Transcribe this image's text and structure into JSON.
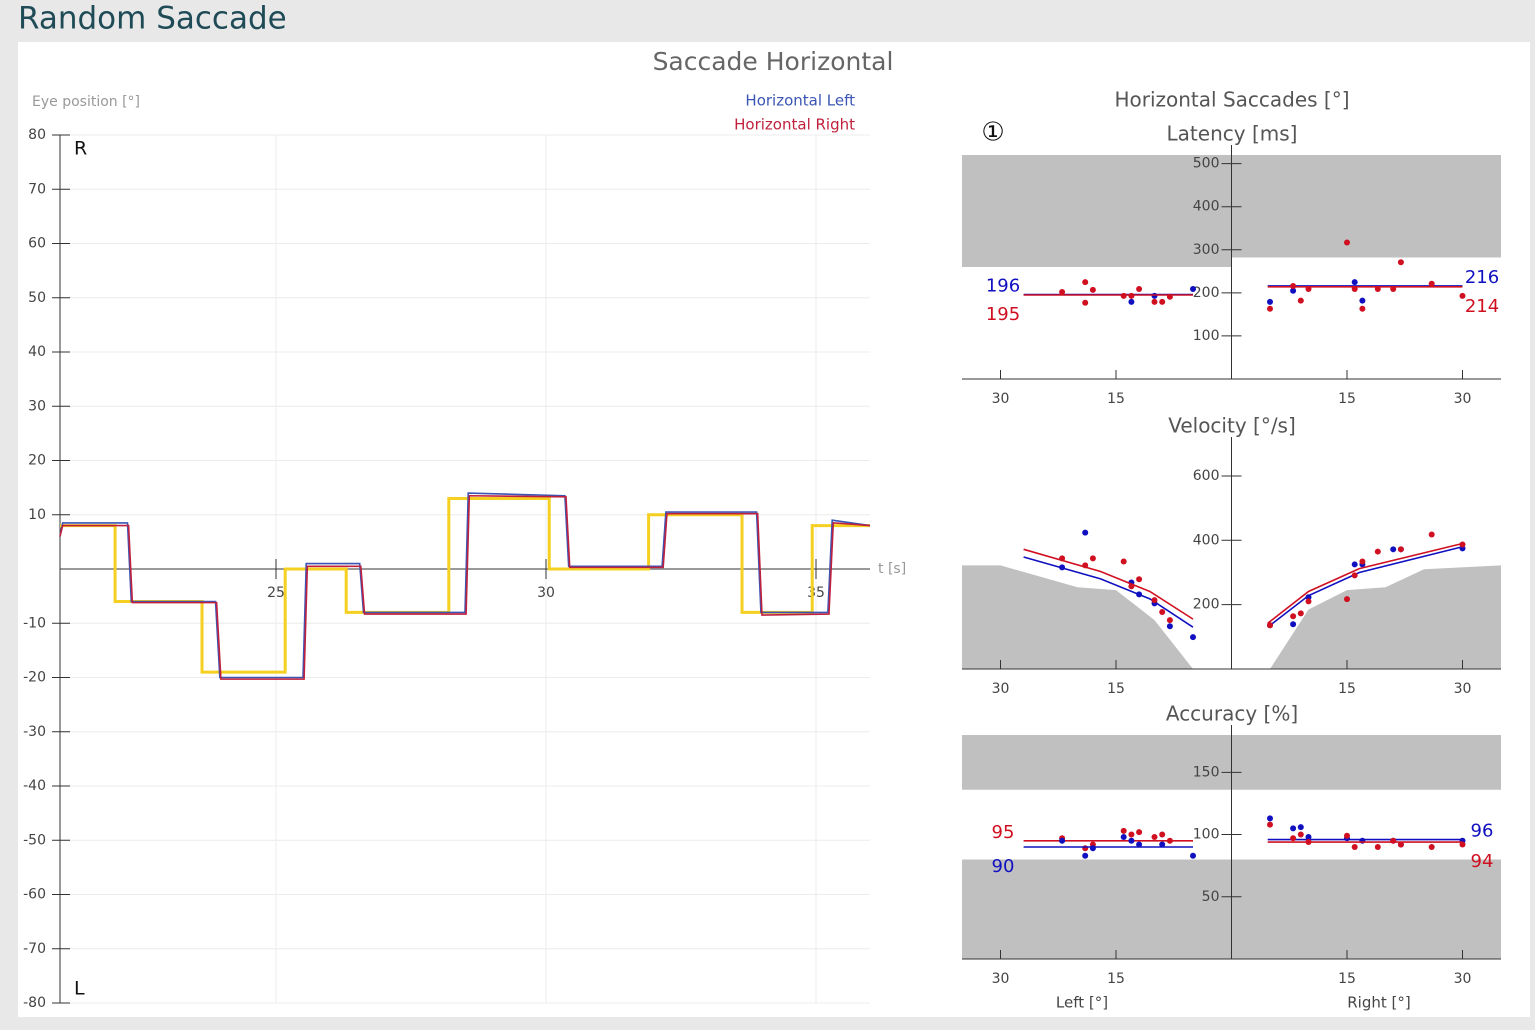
{
  "header": {
    "title": "Random Saccade"
  },
  "section": {
    "title": "Saccade Horizontal"
  },
  "summary": {
    "title": "Horizontal Saccades [°]",
    "marker": "①",
    "xlabels": [
      "Left [°]",
      "Right [°]"
    ]
  },
  "chart_data": [
    {
      "type": "line",
      "ylabel": "Eye position [°]",
      "xlabel": "t [s]",
      "top_label": "R",
      "bottom_label": "L",
      "xlim": [
        21,
        36
      ],
      "xticks": [
        25,
        30,
        35
      ],
      "ylim": [
        -80,
        80
      ],
      "yticks": [
        -80,
        -70,
        -60,
        -50,
        -40,
        -30,
        -20,
        -10,
        10,
        20,
        30,
        40,
        50,
        60,
        70,
        80
      ],
      "grid": true,
      "legend": "top-right",
      "series": [
        {
          "color": "#f5d020",
          "x": [
            21,
            22.02,
            22.02,
            23.63,
            23.63,
            25.17,
            25.17,
            26.3,
            26.3,
            28.2,
            28.2,
            30.06,
            30.06,
            31.9,
            31.9,
            33.63,
            33.63,
            34.93,
            34.93,
            36
          ],
          "values": [
            8,
            8,
            -6,
            -6,
            -19,
            -19,
            0,
            0,
            -8,
            -8,
            13,
            13,
            0,
            0,
            10,
            10,
            -8,
            -8,
            8,
            8
          ]
        },
        {
          "name": "Horizontal Left",
          "color": "#3a55b4",
          "x": [
            21,
            21.05,
            22.25,
            22.32,
            23.88,
            23.96,
            25.5,
            25.56,
            26.55,
            26.62,
            28.5,
            28.56,
            30.35,
            30.42,
            32.15,
            32.22,
            33.9,
            33.98,
            35.22,
            35.3,
            36
          ],
          "values": [
            6,
            8.5,
            8.5,
            -6,
            -6,
            -20,
            -20,
            1,
            1,
            -8,
            -8,
            14,
            13.5,
            0.5,
            0.5,
            10.5,
            10.5,
            -8,
            -8,
            9,
            8
          ]
        },
        {
          "name": "Horizontal Right",
          "color": "#c0203c",
          "x": [
            21,
            21.05,
            22.27,
            22.34,
            23.9,
            23.98,
            25.52,
            25.58,
            26.57,
            26.64,
            28.52,
            28.58,
            30.37,
            30.44,
            32.17,
            32.24,
            33.92,
            34,
            35.24,
            35.32,
            36
          ],
          "values": [
            6,
            8,
            8,
            -6.2,
            -6.2,
            -20.3,
            -20.3,
            0.5,
            0.5,
            -8.3,
            -8.3,
            13.5,
            13.3,
            0.3,
            0.3,
            10.2,
            10.2,
            -8.5,
            -8.3,
            8.5,
            8
          ]
        }
      ]
    },
    {
      "type": "scatter",
      "title": "Latency [ms]",
      "xlim": [
        -35,
        35
      ],
      "xticks": [
        {
          "value": -30,
          "label": "30"
        },
        {
          "value": -15,
          "label": "15"
        },
        15,
        30
      ],
      "ylim": [
        0,
        520
      ],
      "yticks": [
        100,
        200,
        300,
        400,
        500
      ],
      "fit_labels": true,
      "shade_color": "#c0c0c0",
      "shade": [
        {
          "x": [
            -35,
            0,
            0,
            35,
            35,
            -35
          ],
          "y": [
            260,
            260,
            282,
            282,
            520,
            520
          ]
        }
      ],
      "series": [
        {
          "color": "#1010c0",
          "x": [
            -13,
            -10,
            -5
          ],
          "values": [
            179,
            193,
            209
          ],
          "fit_x": [
            -27,
            -5
          ],
          "fit_y": [
            196,
            196
          ]
        },
        {
          "color": "#d01020",
          "x": [
            -22,
            -19,
            -19,
            -18,
            -14,
            -13,
            -12,
            -10,
            -9,
            -8
          ],
          "values": [
            202,
            225,
            177,
            207,
            193,
            193,
            209,
            179,
            179,
            191
          ],
          "fit_x": [
            -27,
            -5
          ],
          "fit_y": [
            195,
            195
          ]
        },
        {
          "color": "#1010c0",
          "x": [
            5,
            8,
            16,
            17
          ],
          "values": [
            179,
            205,
            225,
            182
          ],
          "fit_x": [
            4.7,
            30
          ],
          "fit_y": [
            216,
            216
          ]
        },
        {
          "color": "#d01020",
          "x": [
            5,
            8,
            9,
            10,
            15,
            16,
            17,
            19,
            21,
            22,
            26,
            30
          ],
          "values": [
            163,
            216,
            182,
            209,
            317,
            209,
            163,
            209,
            209,
            271,
            221,
            193
          ],
          "fit_x": [
            4.7,
            30
          ],
          "fit_y": [
            214,
            214
          ]
        }
      ]
    },
    {
      "type": "scatter",
      "title": "Velocity [°/s]",
      "xlim": [
        -35,
        35
      ],
      "xticks": [
        {
          "value": -30,
          "label": "30"
        },
        {
          "value": -15,
          "label": "15"
        },
        15,
        30
      ],
      "ylim": [
        0,
        690
      ],
      "yticks": [
        200,
        400,
        600
      ],
      "fit_labels": false,
      "shade_color": "#c0c0c0",
      "shade": [
        {
          "x": [
            -35,
            -30,
            -20,
            -15,
            -10,
            -5,
            5,
            10,
            15,
            20,
            25,
            35,
            35,
            -35
          ],
          "y": [
            322,
            322,
            254,
            245,
            152,
            0,
            0,
            185,
            245,
            254,
            310,
            322,
            0,
            0
          ]
        }
      ],
      "series": [
        {
          "color": "#1010c0",
          "x": [
            -22,
            -19,
            -13,
            -12,
            -10,
            -8,
            -5
          ],
          "values": [
            316,
            424,
            269,
            232,
            204,
            133,
            99
          ],
          "fit_x": [
            -27,
            -17,
            -10.6,
            -5
          ],
          "fit_y": [
            348,
            280,
            218,
            130
          ]
        },
        {
          "color": "#d01020",
          "x": [
            -22,
            -19,
            -18,
            -14,
            -13,
            -12,
            -10,
            -9,
            -8
          ],
          "values": [
            344,
            322,
            344,
            334,
            257,
            279,
            214,
            177,
            152
          ],
          "fit_x": [
            -27,
            -17,
            -10.6,
            -5
          ],
          "fit_y": [
            372,
            303,
            241,
            155
          ]
        },
        {
          "color": "#1010c0",
          "x": [
            5,
            8,
            10,
            16,
            17,
            21,
            22,
            30
          ],
          "values": [
            136,
            139,
            223,
            325,
            325,
            372,
            372,
            375
          ],
          "fit_x": [
            4.7,
            10,
            16.6,
            30
          ],
          "fit_y": [
            130,
            228,
            300,
            380
          ]
        },
        {
          "color": "#d01020",
          "x": [
            5,
            8,
            9,
            10,
            15,
            16,
            17,
            19,
            22,
            26,
            30
          ],
          "values": [
            136,
            164,
            173,
            210,
            217,
            291,
            334,
            365,
            372,
            418,
            387
          ],
          "fit_x": [
            4.7,
            10,
            16.6,
            30
          ],
          "fit_y": [
            142,
            241,
            312,
            390
          ]
        }
      ]
    },
    {
      "type": "scatter",
      "title": "Accuracy [%]",
      "xlim": [
        -35,
        35
      ],
      "xticks": [
        {
          "value": -30,
          "label": "30"
        },
        {
          "value": -15,
          "label": "15"
        },
        15,
        30
      ],
      "ylim": [
        0,
        180
      ],
      "yticks": [
        50,
        100,
        150
      ],
      "fit_labels": true,
      "shade_color": "#c0c0c0",
      "shade": [
        {
          "x": [
            -35,
            35,
            35,
            -35
          ],
          "y": [
            136,
            136,
            180,
            180
          ]
        },
        {
          "x": [
            -35,
            35,
            35,
            -35
          ],
          "y": [
            0,
            0,
            80,
            80
          ]
        }
      ],
      "series": [
        {
          "color": "#d01020",
          "x": [
            -22,
            -19,
            -18,
            -14,
            -13,
            -12,
            -10,
            -9,
            -8
          ],
          "values": [
            97,
            89,
            92,
            103,
            100,
            102,
            98,
            100,
            95
          ],
          "fit_x": [
            -27,
            -5
          ],
          "fit_y": [
            95,
            95
          ]
        },
        {
          "color": "#1010c0",
          "x": [
            -22,
            -19,
            -18,
            -14,
            -13,
            -12,
            -9,
            -5
          ],
          "values": [
            95,
            83,
            89,
            98,
            95,
            92,
            92,
            83
          ],
          "fit_x": [
            -27,
            -5
          ],
          "fit_y": [
            90,
            90
          ]
        },
        {
          "color": "#1010c0",
          "x": [
            5,
            8,
            9,
            10,
            15,
            17,
            21,
            22,
            30
          ],
          "values": [
            113,
            105,
            106,
            98,
            97,
            95,
            95,
            92,
            95
          ],
          "fit_x": [
            4.7,
            30
          ],
          "fit_y": [
            96,
            96
          ]
        },
        {
          "color": "#d01020",
          "x": [
            5,
            8,
            9,
            10,
            15,
            16,
            19,
            21,
            22,
            26,
            30
          ],
          "values": [
            108,
            97,
            100,
            94,
            99,
            90,
            90,
            95,
            92,
            90,
            92
          ],
          "fit_x": [
            4.7,
            30
          ],
          "fit_y": [
            94,
            94
          ]
        }
      ]
    }
  ]
}
